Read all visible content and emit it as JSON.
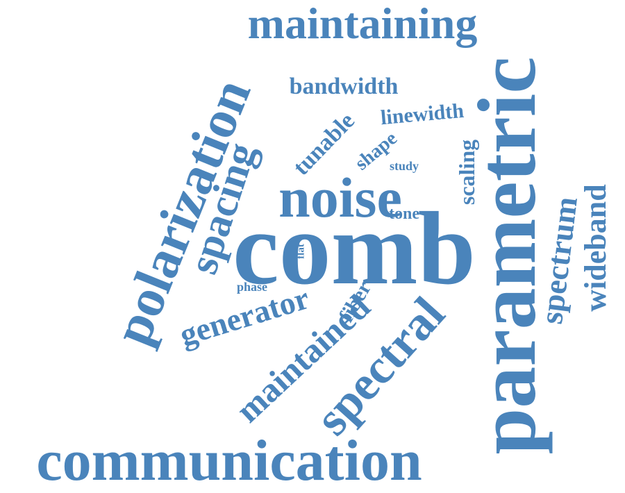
{
  "word_cloud": {
    "color": "#4a84bb",
    "words": [
      {
        "id": "communication",
        "text": "communication"
      },
      {
        "id": "comb",
        "text": "comb"
      },
      {
        "id": "parametric",
        "text": "parametric"
      },
      {
        "id": "polarization",
        "text": "polarization"
      },
      {
        "id": "maintaining",
        "text": "maintaining"
      },
      {
        "id": "noise",
        "text": "noise"
      },
      {
        "id": "spectral",
        "text": "spectral"
      },
      {
        "id": "maintained",
        "text": "maintained"
      },
      {
        "id": "spacing",
        "text": "spacing"
      },
      {
        "id": "generator",
        "text": "generator"
      },
      {
        "id": "spectrum",
        "text": "spectrum"
      },
      {
        "id": "wideband",
        "text": "wideband"
      },
      {
        "id": "bandwidth",
        "text": "bandwidth"
      },
      {
        "id": "tunable",
        "text": "tunable"
      },
      {
        "id": "linewidth",
        "text": "linewidth"
      },
      {
        "id": "scaling",
        "text": "scaling"
      },
      {
        "id": "shape",
        "text": "shape"
      },
      {
        "id": "fiber",
        "text": "fiber"
      },
      {
        "id": "tone",
        "text": "tone"
      },
      {
        "id": "study",
        "text": "study"
      },
      {
        "id": "phase",
        "text": "phase"
      },
      {
        "id": "flat",
        "text": "flat"
      }
    ]
  }
}
